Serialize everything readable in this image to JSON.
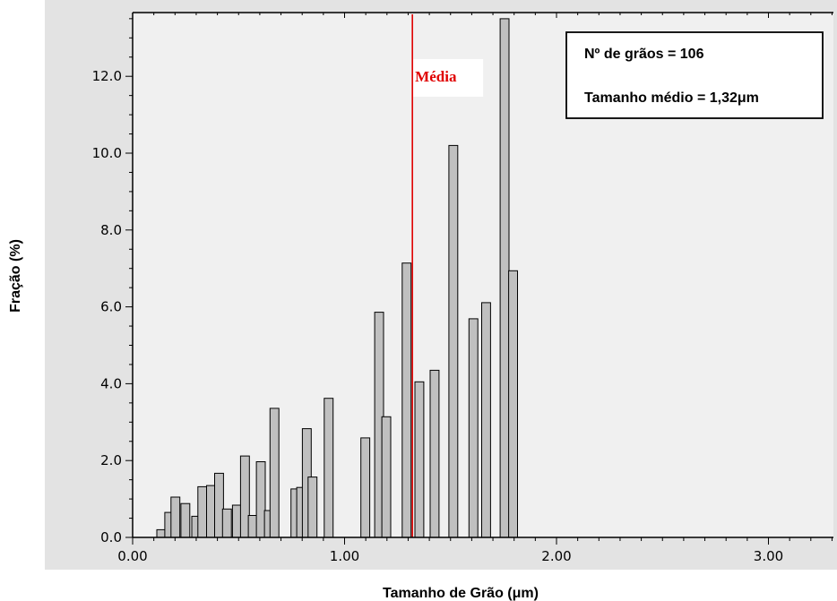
{
  "chart_data": {
    "type": "bar",
    "xlabel": "Tamanho de Grão (μm)",
    "ylabel": "Fração (%)",
    "xlim": [
      0,
      3.3
    ],
    "ylim": [
      0,
      13.5
    ],
    "x_ticks": [
      "0.00",
      "1.00",
      "2.00",
      "3.00"
    ],
    "y_ticks": [
      "0.0",
      "2.0",
      "4.0",
      "6.0",
      "8.0",
      "10.0",
      "12.0"
    ],
    "bar_width": 0.042,
    "x": [
      0.135,
      0.173,
      0.202,
      0.249,
      0.3,
      0.329,
      0.37,
      0.408,
      0.445,
      0.492,
      0.53,
      0.567,
      0.605,
      0.643,
      0.669,
      0.768,
      0.795,
      0.822,
      0.849,
      0.925,
      1.098,
      1.163,
      1.197,
      1.293,
      1.353,
      1.425,
      1.513,
      1.608,
      1.668,
      1.755,
      1.795
    ],
    "values": [
      0.2,
      0.65,
      1.05,
      0.88,
      0.55,
      1.32,
      1.35,
      1.67,
      0.74,
      0.84,
      2.12,
      0.57,
      1.97,
      0.7,
      3.36,
      1.26,
      1.3,
      2.83,
      1.57,
      3.62,
      2.59,
      5.86,
      3.14,
      7.14,
      4.05,
      4.35,
      10.2,
      5.69,
      6.11,
      13.5,
      6.94
    ],
    "bar_color": "#c0c0c0",
    "mean_line": {
      "x": 1.32,
      "color": "#e00000",
      "label": "Média"
    },
    "info_box": {
      "lines": [
        "Nº de grãos = 106",
        "Tamanho médio = 1,32μm"
      ]
    },
    "grid": false,
    "plot_background": "#f0f0f0",
    "frame_background": "#e3e3e3"
  }
}
